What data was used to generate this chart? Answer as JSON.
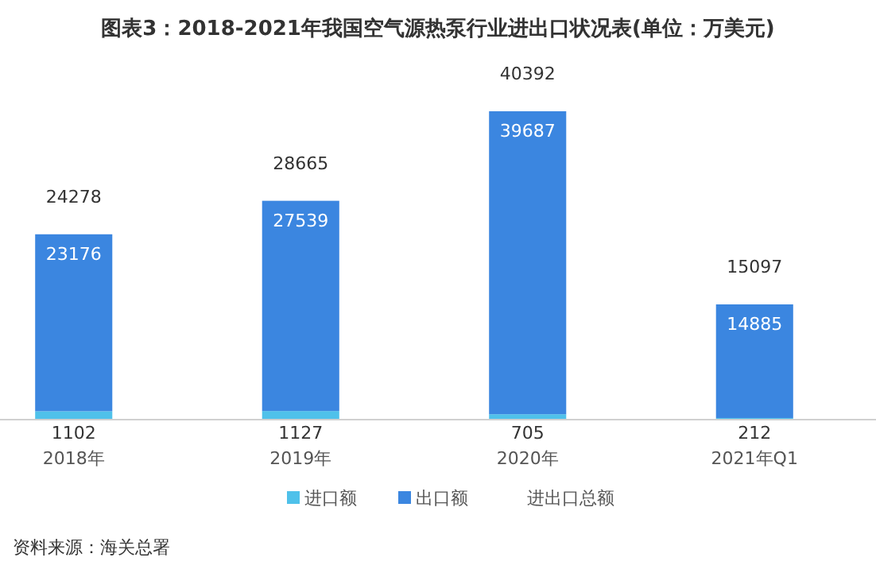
{
  "chart_data": {
    "type": "bar",
    "title": "图表3：2018-2021年我国空气源热泵行业进出口状况表(单位：万美元)",
    "categories": [
      "2018年",
      "2019年",
      "2020年",
      "2021年Q1"
    ],
    "stacked": true,
    "data_labels": true,
    "legend": "bottom",
    "series": [
      {
        "name": "进口额",
        "color": "#4fc1ea",
        "values": [
          1102,
          1127,
          705,
          212
        ]
      },
      {
        "name": "出口额",
        "color": "#3b86e0",
        "values": [
          23176,
          27539,
          39687,
          14885
        ]
      }
    ],
    "totals": [
      "24278",
      "28665",
      "40392",
      "15097"
    ],
    "annotations": [
      "进出口总额",
      "资料来源：海关总署"
    ]
  }
}
